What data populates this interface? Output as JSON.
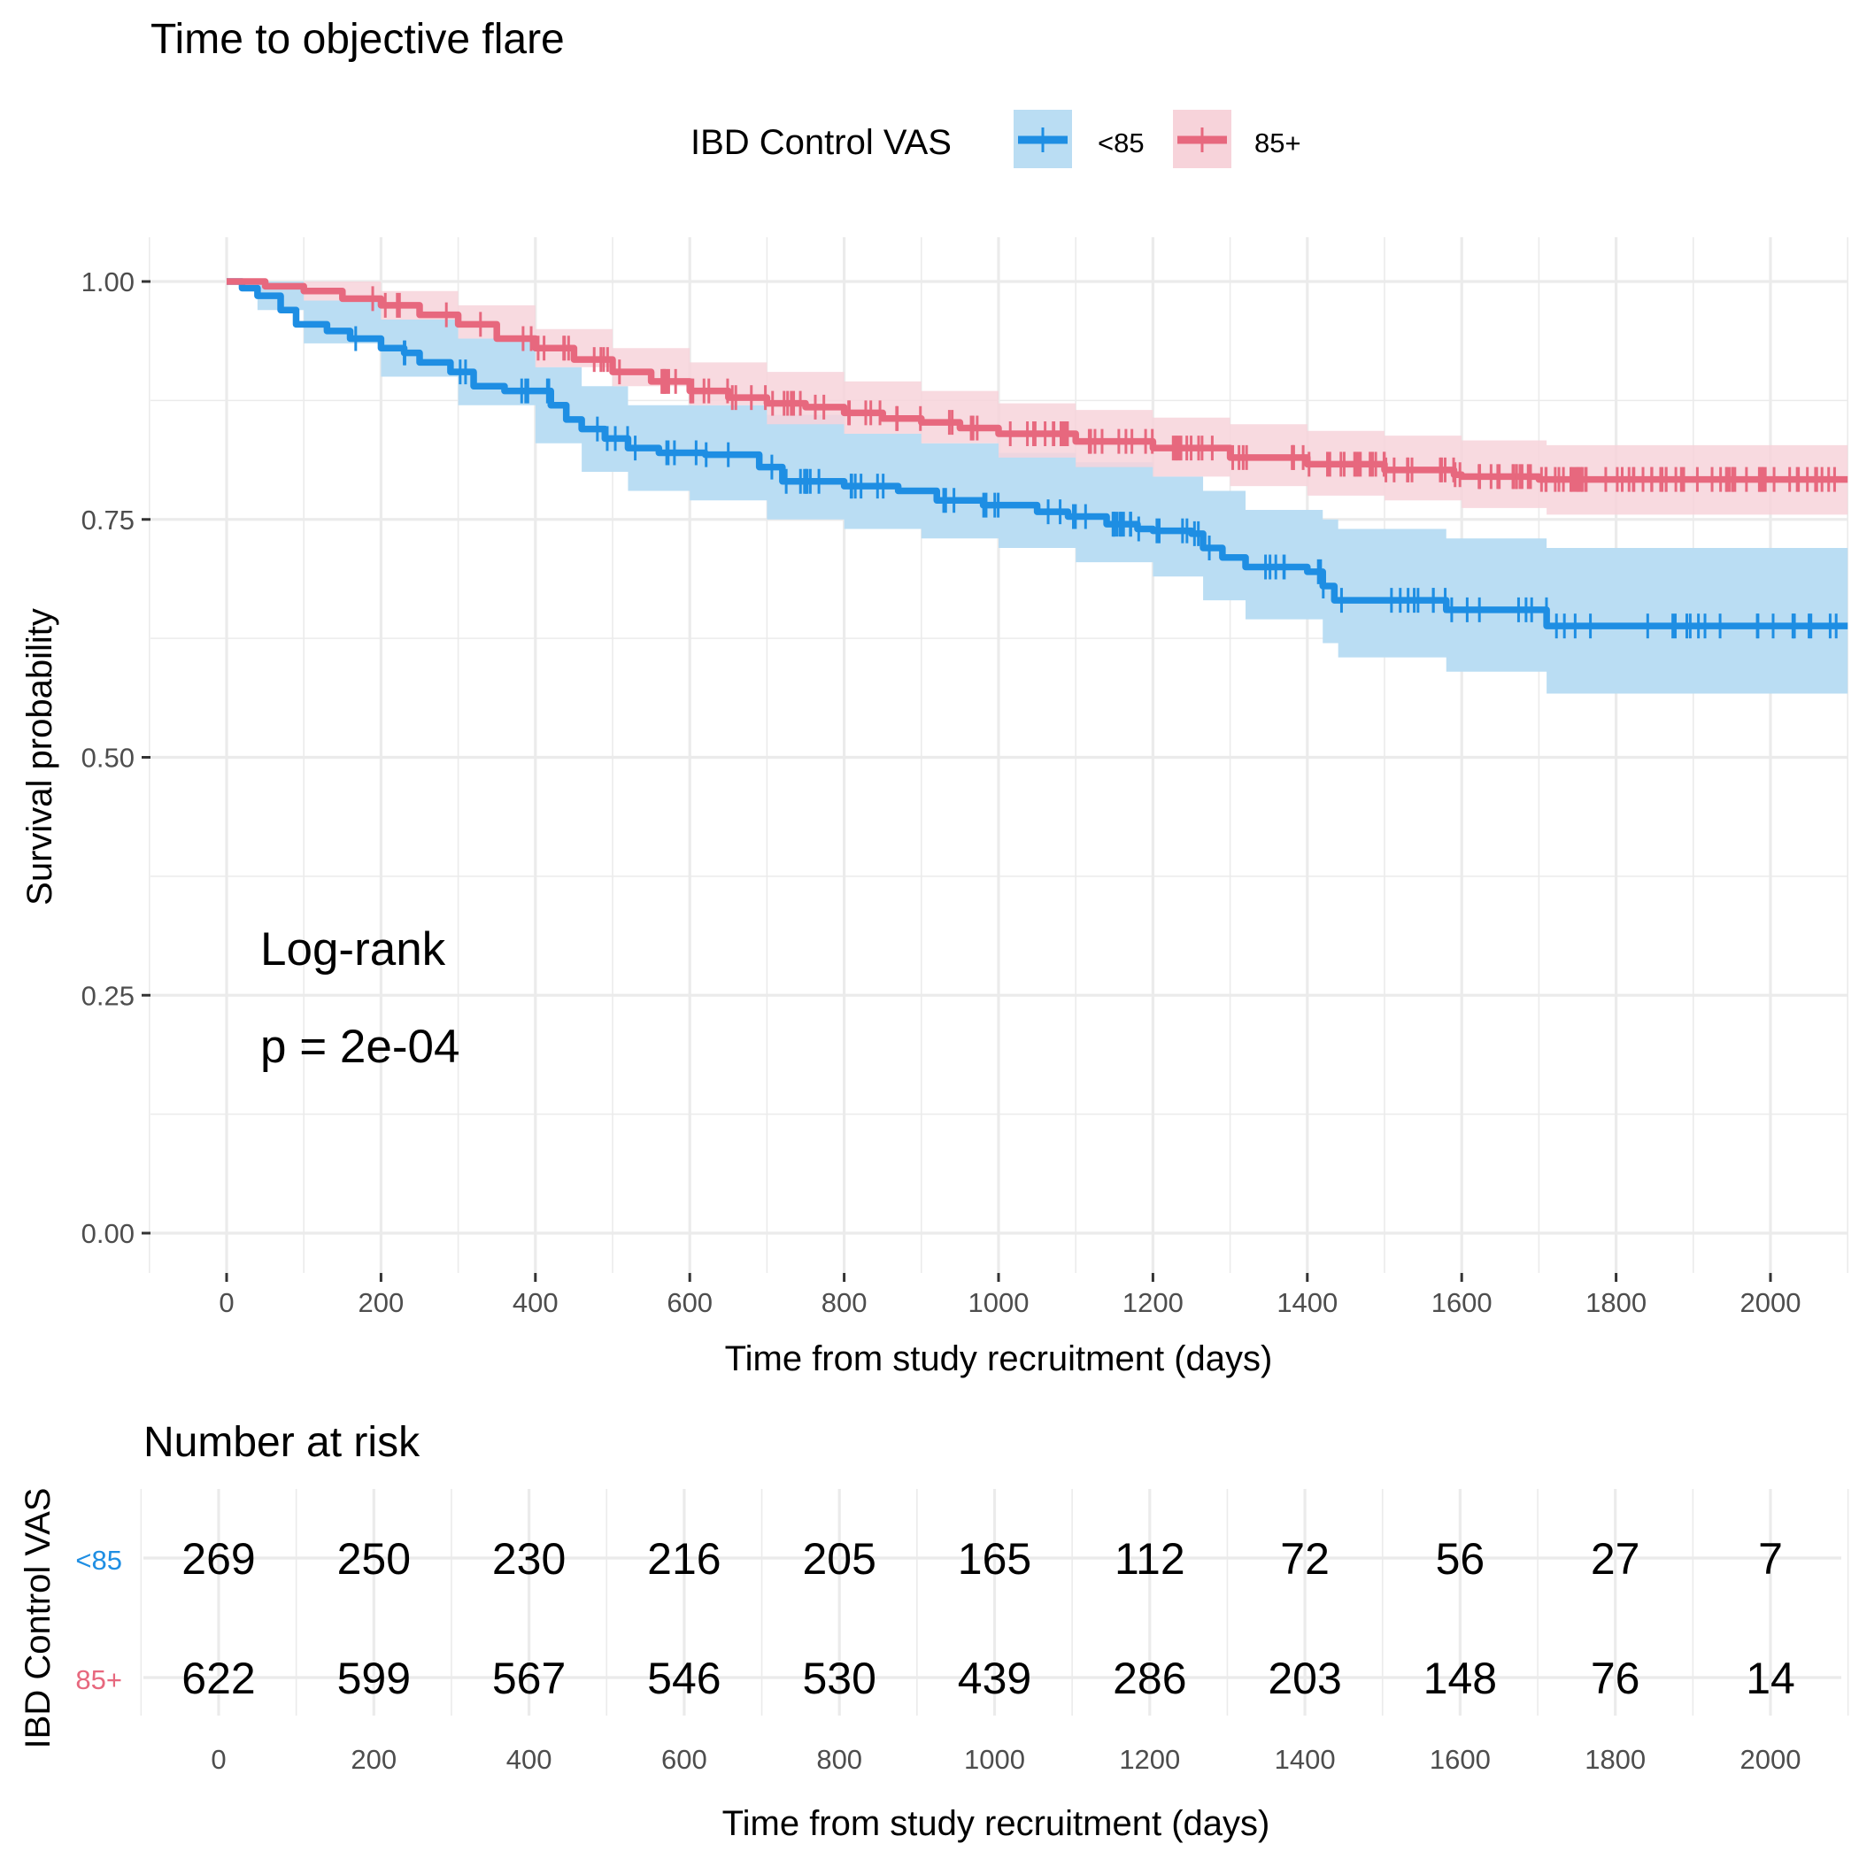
{
  "chart_data": {
    "type": "line",
    "subtype": "kaplan-meier",
    "title": "Time to objective flare",
    "xlabel": "Time from study recruitment (days)",
    "ylabel": "Survival probability",
    "xlim": [
      -100,
      2100
    ],
    "ylim": [
      0,
      1
    ],
    "x_ticks": [
      0,
      200,
      400,
      600,
      800,
      1000,
      1200,
      1400,
      1600,
      1800,
      2000
    ],
    "y_ticks": [
      0.0,
      0.25,
      0.5,
      0.75,
      1.0
    ],
    "y_tick_labels": [
      "0.00",
      "0.25",
      "0.50",
      "0.75",
      "1.00"
    ],
    "grid": true,
    "legend": {
      "title": "IBD Control VAS",
      "placement": "top",
      "entries": [
        "<85",
        "85+"
      ]
    },
    "annotation": {
      "line1": "Log-rank",
      "line2": "p = 2e-04"
    },
    "series": [
      {
        "name": "<85",
        "color": "#1E8EE3",
        "fill": "#BADDF3",
        "steps": [
          [
            0,
            1.0
          ],
          [
            20,
            0.993
          ],
          [
            40,
            0.985
          ],
          [
            70,
            0.97
          ],
          [
            90,
            0.955
          ],
          [
            130,
            0.948
          ],
          [
            160,
            0.94
          ],
          [
            200,
            0.93
          ],
          [
            230,
            0.925
          ],
          [
            250,
            0.915
          ],
          [
            290,
            0.905
          ],
          [
            320,
            0.89
          ],
          [
            360,
            0.885
          ],
          [
            420,
            0.87
          ],
          [
            440,
            0.855
          ],
          [
            460,
            0.845
          ],
          [
            490,
            0.835
          ],
          [
            520,
            0.825
          ],
          [
            560,
            0.82
          ],
          [
            620,
            0.818
          ],
          [
            690,
            0.805
          ],
          [
            720,
            0.79
          ],
          [
            800,
            0.785
          ],
          [
            870,
            0.78
          ],
          [
            920,
            0.77
          ],
          [
            980,
            0.765
          ],
          [
            1050,
            0.758
          ],
          [
            1090,
            0.753
          ],
          [
            1140,
            0.745
          ],
          [
            1180,
            0.74
          ],
          [
            1200,
            0.738
          ],
          [
            1250,
            0.735
          ],
          [
            1265,
            0.72
          ],
          [
            1290,
            0.71
          ],
          [
            1320,
            0.7
          ],
          [
            1400,
            0.695
          ],
          [
            1420,
            0.68
          ],
          [
            1435,
            0.665
          ],
          [
            1580,
            0.655
          ],
          [
            1710,
            0.638
          ],
          [
            2100,
            0.638
          ]
        ],
        "ci": [
          [
            0,
            1.0,
            1.0
          ],
          [
            40,
            0.97,
            1.0
          ],
          [
            100,
            0.935,
            0.98
          ],
          [
            200,
            0.9,
            0.96
          ],
          [
            300,
            0.87,
            0.94
          ],
          [
            400,
            0.83,
            0.91
          ],
          [
            460,
            0.8,
            0.89
          ],
          [
            520,
            0.78,
            0.87
          ],
          [
            600,
            0.77,
            0.87
          ],
          [
            700,
            0.75,
            0.86
          ],
          [
            800,
            0.74,
            0.84
          ],
          [
            900,
            0.73,
            0.83
          ],
          [
            1000,
            0.72,
            0.82
          ],
          [
            1100,
            0.705,
            0.81
          ],
          [
            1200,
            0.69,
            0.795
          ],
          [
            1265,
            0.665,
            0.78
          ],
          [
            1320,
            0.645,
            0.76
          ],
          [
            1420,
            0.62,
            0.75
          ],
          [
            1440,
            0.605,
            0.74
          ],
          [
            1580,
            0.59,
            0.73
          ],
          [
            1710,
            0.567,
            0.72
          ],
          [
            2100,
            0.567,
            0.72
          ]
        ]
      },
      {
        "name": "85+",
        "color": "#E7687E",
        "fill": "#F7D3DA",
        "steps": [
          [
            0,
            1.0
          ],
          [
            50,
            0.995
          ],
          [
            100,
            0.99
          ],
          [
            150,
            0.982
          ],
          [
            200,
            0.975
          ],
          [
            250,
            0.965
          ],
          [
            300,
            0.955
          ],
          [
            350,
            0.94
          ],
          [
            400,
            0.93
          ],
          [
            450,
            0.918
          ],
          [
            500,
            0.905
          ],
          [
            550,
            0.895
          ],
          [
            600,
            0.885
          ],
          [
            650,
            0.878
          ],
          [
            700,
            0.872
          ],
          [
            750,
            0.868
          ],
          [
            800,
            0.862
          ],
          [
            850,
            0.856
          ],
          [
            900,
            0.852
          ],
          [
            950,
            0.846
          ],
          [
            1000,
            0.84
          ],
          [
            1100,
            0.832
          ],
          [
            1200,
            0.825
          ],
          [
            1300,
            0.815
          ],
          [
            1400,
            0.808
          ],
          [
            1500,
            0.802
          ],
          [
            1590,
            0.797
          ],
          [
            1600,
            0.795
          ],
          [
            1700,
            0.792
          ],
          [
            2100,
            0.792
          ]
        ],
        "ci": [
          [
            0,
            1.0,
            1.0
          ],
          [
            100,
            0.98,
            1.0
          ],
          [
            200,
            0.96,
            0.99
          ],
          [
            300,
            0.94,
            0.975
          ],
          [
            400,
            0.91,
            0.95
          ],
          [
            500,
            0.89,
            0.93
          ],
          [
            600,
            0.87,
            0.915
          ],
          [
            700,
            0.85,
            0.905
          ],
          [
            800,
            0.84,
            0.895
          ],
          [
            900,
            0.83,
            0.885
          ],
          [
            1000,
            0.815,
            0.872
          ],
          [
            1100,
            0.805,
            0.865
          ],
          [
            1200,
            0.795,
            0.857
          ],
          [
            1300,
            0.785,
            0.85
          ],
          [
            1400,
            0.775,
            0.843
          ],
          [
            1500,
            0.77,
            0.838
          ],
          [
            1600,
            0.762,
            0.833
          ],
          [
            1710,
            0.755,
            0.828
          ],
          [
            2100,
            0.755,
            0.828
          ]
        ],
        "censor_range": [
          100,
          2100
        ]
      }
    ],
    "risk_table": {
      "title": "Number at risk",
      "ylabel": "IBD Control VAS",
      "xlabel": "Time from study recruitment (days)",
      "times": [
        0,
        200,
        400,
        600,
        800,
        1000,
        1200,
        1400,
        1600,
        1800,
        2000
      ],
      "rows": [
        {
          "group": "<85",
          "color": "#1E8EE3",
          "values": [
            269,
            250,
            230,
            216,
            205,
            165,
            112,
            72,
            56,
            27,
            7
          ]
        },
        {
          "group": "85+",
          "color": "#E7687E",
          "values": [
            622,
            599,
            567,
            546,
            530,
            439,
            286,
            203,
            148,
            76,
            14
          ]
        }
      ]
    }
  }
}
